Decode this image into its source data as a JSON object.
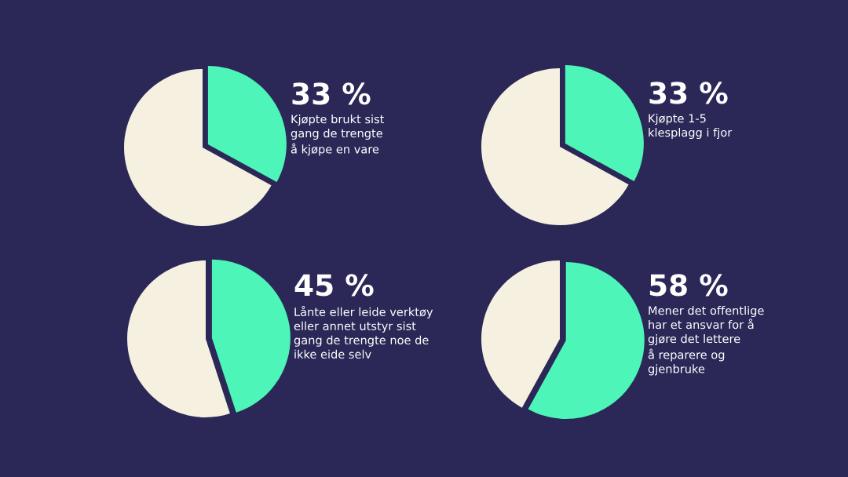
{
  "chart_data": [
    {
      "type": "pie",
      "title": "Kjøpte brukt sist\ngang de trengte\nå kjøpe en vare",
      "categories": [
        null,
        null
      ],
      "values": [
        33,
        67
      ],
      "value_labels": [
        "33 %",
        null
      ],
      "colors": [
        "#4ef5b8",
        "#f6f0e0"
      ]
    },
    {
      "type": "pie",
      "title": "Kjøpte 1-5\nklesplagg i fjor",
      "categories": [
        null,
        null
      ],
      "values": [
        33,
        67
      ],
      "value_labels": [
        "33 %",
        null
      ],
      "colors": [
        "#4ef5b8",
        "#f6f0e0"
      ]
    },
    {
      "type": "pie",
      "title": "Lånte eller leide verktøy\neller annet utstyr sist\ngang de trengte noe de\nikke eide selv",
      "categories": [
        null,
        null
      ],
      "values": [
        45,
        55
      ],
      "value_labels": [
        "45 %",
        null
      ],
      "colors": [
        "#4ef5b8",
        "#f6f0e0"
      ]
    },
    {
      "type": "pie",
      "title": "Mener det offentlige\nhar et ansvar for å\ngjøre det lettere\nå reparere og\ngjenbruke",
      "categories": [
        null,
        null
      ],
      "values": [
        58,
        42
      ],
      "value_labels": [
        "58 %",
        null
      ],
      "colors": [
        "#4ef5b8",
        "#f6f0e0"
      ]
    }
  ]
}
